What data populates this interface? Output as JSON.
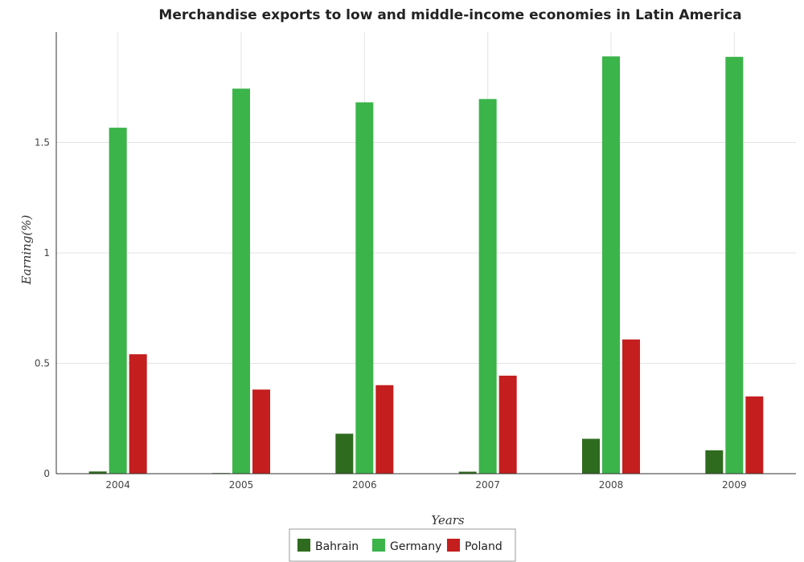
{
  "chart_data": {
    "type": "bar",
    "title": "Merchandise exports to low and middle-income economies in Latin America",
    "xlabel": "Years",
    "ylabel": "Earning(%)",
    "categories": [
      "2004",
      "2005",
      "2006",
      "2007",
      "2008",
      "2009"
    ],
    "ylim": [
      0,
      2.0
    ],
    "yticks": [
      0,
      0.5,
      1,
      1.5
    ],
    "ytick_labels": [
      "0",
      "0.5",
      "1",
      "1.5"
    ],
    "grid": true,
    "legend_position": "bottom",
    "series": [
      {
        "name": "Bahrain",
        "color": "#2e6b1e",
        "values": [
          0.01,
          0.003,
          0.181,
          0.009,
          0.158,
          0.106
        ]
      },
      {
        "name": "Germany",
        "color": "#3bb44a",
        "values": [
          1.567,
          1.744,
          1.682,
          1.697,
          1.89,
          1.888
        ]
      },
      {
        "name": "Poland",
        "color": "#c41e1e",
        "values": [
          0.541,
          0.381,
          0.401,
          0.444,
          0.608,
          0.35
        ]
      }
    ]
  }
}
